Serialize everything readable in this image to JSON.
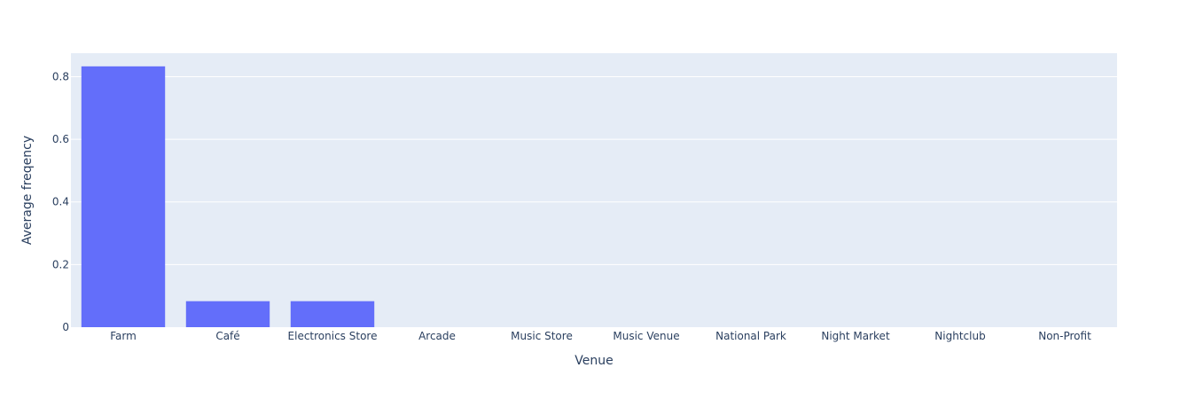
{
  "chart_data": {
    "type": "bar",
    "categories": [
      "Farm",
      "Café",
      "Electronics Store",
      "Arcade",
      "Music Store",
      "Music Venue",
      "National Park",
      "Night Market",
      "Nightclub",
      "Non-Profit"
    ],
    "values": [
      0.833,
      0.083,
      0.083,
      0,
      0,
      0,
      0,
      0,
      0,
      0
    ],
    "xlabel": "Venue",
    "ylabel": "Average freqency",
    "ylim": [
      0,
      0.875
    ],
    "yticks": [
      0,
      0.2,
      0.4,
      0.6,
      0.8
    ],
    "ytick_labels": [
      "0",
      "0.2",
      "0.4",
      "0.6",
      "0.8"
    ],
    "grid": true,
    "colors": {
      "bar": "#636efa",
      "plot_background": "#e5ecf6",
      "gridline": "#ffffff",
      "text": "#2a3f5f"
    }
  }
}
